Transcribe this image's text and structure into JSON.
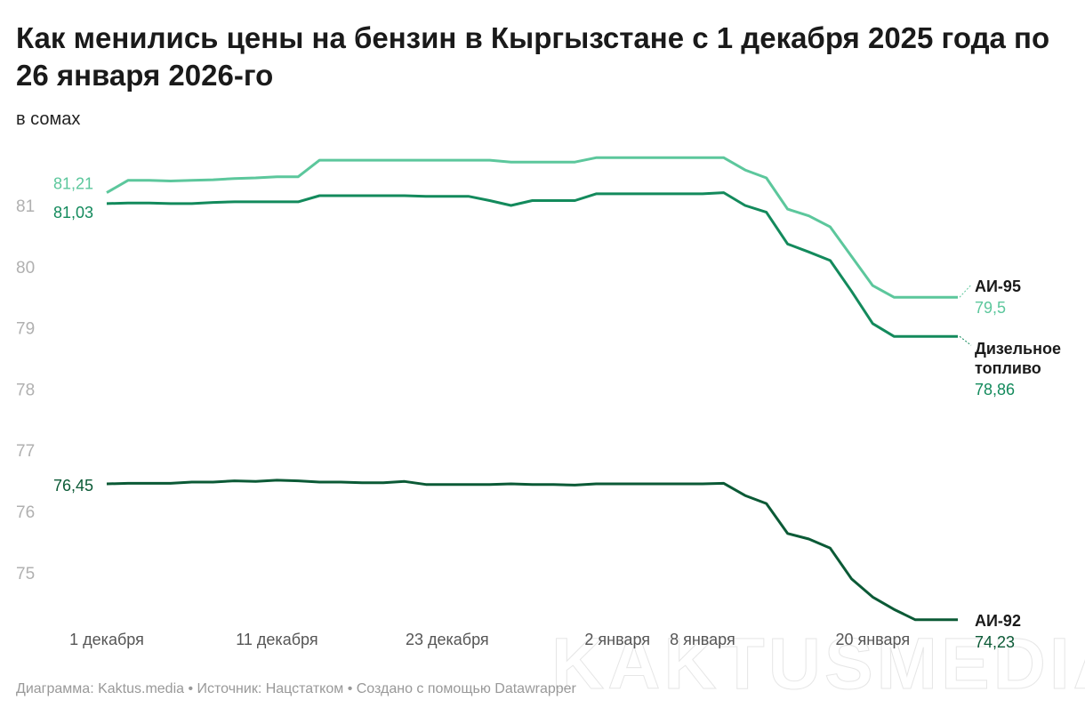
{
  "title": "Как менились цены на бензин в Кыргызстане с 1 декабря 2025 года по 26 января 2026-го",
  "subtitle": "в сомах",
  "footer": "Диаграмма: Kaktus.media • Источник: Нацстатком • Создано с помощью Datawrapper",
  "watermark": "KAKTUSMEDIA",
  "chart_data": {
    "type": "line",
    "ylim": [
      74,
      82
    ],
    "yticks": [
      75,
      76,
      77,
      78,
      79,
      80,
      81
    ],
    "grid": false,
    "x": [
      "2025-12-01",
      "2025-12-02",
      "2025-12-03",
      "2025-12-04",
      "2025-12-05",
      "2025-12-08",
      "2025-12-09",
      "2025-12-10",
      "2025-12-11",
      "2025-12-12",
      "2025-12-15",
      "2025-12-16",
      "2025-12-17",
      "2025-12-18",
      "2025-12-19",
      "2025-12-22",
      "2025-12-23",
      "2025-12-24",
      "2025-12-25",
      "2025-12-26",
      "2025-12-29",
      "2025-12-30",
      "2025-12-31",
      "2026-01-01",
      "2026-01-02",
      "2026-01-05",
      "2026-01-06",
      "2026-01-07",
      "2026-01-08",
      "2026-01-09",
      "2026-01-12",
      "2026-01-13",
      "2026-01-14",
      "2026-01-15",
      "2026-01-16",
      "2026-01-19",
      "2026-01-20",
      "2026-01-21",
      "2026-01-22",
      "2026-01-23",
      "2026-01-26"
    ],
    "xticks": [
      {
        "date": "2025-12-01",
        "label": "1 декабря"
      },
      {
        "date": "2025-12-11",
        "label": "11 декабря"
      },
      {
        "date": "2025-12-23",
        "label": "23 декабря"
      },
      {
        "date": "2026-01-02",
        "label": "2 января"
      },
      {
        "date": "2026-01-08",
        "label": "8 января"
      },
      {
        "date": "2026-01-20",
        "label": "20 января"
      }
    ],
    "series": [
      {
        "name": "АИ-95",
        "name_lines": [
          "АИ-95"
        ],
        "color": "#5cc79c",
        "start_label": "81,21",
        "end_label": "79,5",
        "values": [
          81.21,
          81.41,
          81.41,
          81.4,
          81.41,
          81.42,
          81.44,
          81.45,
          81.47,
          81.47,
          81.74,
          81.74,
          81.74,
          81.74,
          81.74,
          81.74,
          81.74,
          81.74,
          81.74,
          81.71,
          81.71,
          81.71,
          81.71,
          81.78,
          81.78,
          81.78,
          81.78,
          81.78,
          81.78,
          81.78,
          81.58,
          81.45,
          80.94,
          80.83,
          80.65,
          80.17,
          79.69,
          79.5,
          79.5,
          79.5,
          79.5
        ]
      },
      {
        "name": "Дизельное топливо",
        "name_lines": [
          "Дизельное",
          "топливо"
        ],
        "color": "#138a5c",
        "start_label": "81,03",
        "end_label": "78,86",
        "values": [
          81.03,
          81.04,
          81.04,
          81.03,
          81.03,
          81.05,
          81.06,
          81.06,
          81.06,
          81.06,
          81.16,
          81.16,
          81.16,
          81.16,
          81.16,
          81.15,
          81.15,
          81.15,
          81.08,
          81.0,
          81.08,
          81.08,
          81.08,
          81.19,
          81.19,
          81.19,
          81.19,
          81.19,
          81.19,
          81.21,
          81.0,
          80.89,
          80.37,
          80.24,
          80.1,
          79.6,
          79.07,
          78.86,
          78.86,
          78.86,
          78.86
        ]
      },
      {
        "name": "АИ-92",
        "name_lines": [
          "АИ-92"
        ],
        "color": "#0b5a36",
        "start_label": "76,45",
        "end_label": "74,23",
        "values": [
          76.45,
          76.46,
          76.46,
          76.46,
          76.48,
          76.48,
          76.5,
          76.49,
          76.51,
          76.5,
          76.48,
          76.48,
          76.47,
          76.47,
          76.49,
          76.44,
          76.44,
          76.44,
          76.44,
          76.45,
          76.44,
          76.44,
          76.43,
          76.45,
          76.45,
          76.45,
          76.45,
          76.45,
          76.45,
          76.46,
          76.26,
          76.13,
          75.64,
          75.55,
          75.4,
          74.9,
          74.6,
          74.4,
          74.23,
          74.23,
          74.23
        ]
      }
    ]
  }
}
